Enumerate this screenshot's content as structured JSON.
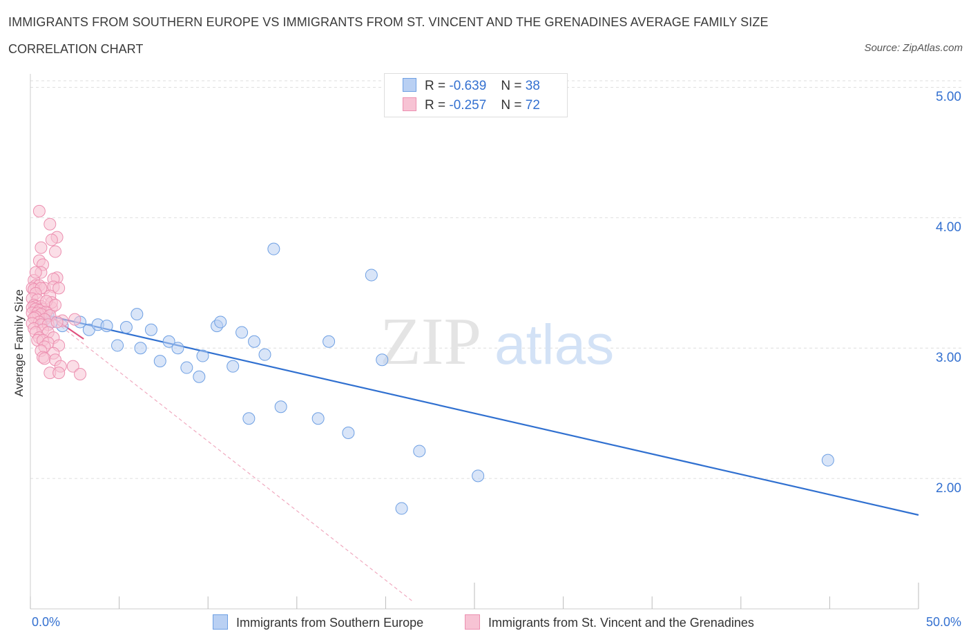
{
  "title": "IMMIGRANTS FROM SOUTHERN EUROPE VS IMMIGRANTS FROM ST. VINCENT AND THE GRENADINES AVERAGE FAMILY SIZE",
  "subtitle": "CORRELATION CHART",
  "source": "Source: ZipAtlas.com",
  "watermark": {
    "zip": "ZIP",
    "atlas": "atlas"
  },
  "legend_top": [
    {
      "r_label": "R =",
      "r_value": "-0.639",
      "n_label": "N =",
      "n_value": "38"
    },
    {
      "r_label": "R =",
      "r_value": "-0.257",
      "n_label": "N =",
      "n_value": "72"
    }
  ],
  "chart_data": {
    "type": "scatter",
    "title": "IMMIGRANTS FROM SOUTHERN EUROPE VS IMMIGRANTS FROM ST. VINCENT AND THE GRENADINES AVERAGE FAMILY SIZE",
    "xlabel": "",
    "ylabel": "Average Family Size",
    "xlim": [
      0,
      50
    ],
    "ylim": [
      1.0,
      5.0
    ],
    "x_tick_labels": [
      "0.0%",
      "50.0%"
    ],
    "y_ticks": [
      2.0,
      3.0,
      4.0,
      5.0
    ],
    "y_tick_labels": [
      "2.00",
      "3.00",
      "4.00",
      "5.00"
    ],
    "grid": true,
    "legend_placement": "bottom",
    "series": [
      {
        "name": "Immigrants from Southern Europe",
        "color": "#6d9fe3",
        "fill": "#b9d0f3",
        "trend": {
          "x": [
            0.3,
            50
          ],
          "y": [
            3.27,
            1.72
          ],
          "color": "#3070d0"
        },
        "points": [
          [
            0.7,
            3.22
          ],
          [
            1.2,
            3.2
          ],
          [
            1.8,
            3.17
          ],
          [
            2.8,
            3.2
          ],
          [
            3.3,
            3.14
          ],
          [
            3.8,
            3.18
          ],
          [
            4.3,
            3.17
          ],
          [
            4.9,
            3.02
          ],
          [
            5.4,
            3.16
          ],
          [
            6.0,
            3.26
          ],
          [
            6.2,
            3.0
          ],
          [
            6.8,
            3.14
          ],
          [
            7.3,
            2.9
          ],
          [
            7.8,
            3.05
          ],
          [
            8.3,
            3.0
          ],
          [
            8.8,
            2.85
          ],
          [
            9.5,
            2.78
          ],
          [
            9.7,
            2.94
          ],
          [
            10.5,
            3.17
          ],
          [
            10.7,
            3.2
          ],
          [
            11.4,
            2.86
          ],
          [
            11.9,
            3.12
          ],
          [
            12.3,
            2.46
          ],
          [
            12.6,
            3.05
          ],
          [
            13.2,
            2.95
          ],
          [
            13.7,
            3.76
          ],
          [
            14.1,
            2.55
          ],
          [
            16.2,
            2.46
          ],
          [
            16.8,
            3.05
          ],
          [
            17.9,
            2.35
          ],
          [
            19.2,
            3.56
          ],
          [
            19.8,
            2.91
          ],
          [
            20.9,
            1.77
          ],
          [
            21.9,
            2.21
          ],
          [
            25.2,
            2.02
          ],
          [
            44.9,
            2.14
          ],
          [
            0.4,
            3.3
          ],
          [
            1.0,
            3.25
          ]
        ]
      },
      {
        "name": "Immigrants from St. Vincent and the Grenadines",
        "color": "#ec8fb0",
        "fill": "#f7c3d4",
        "trend": {
          "x": [
            0.1,
            3.0
          ],
          "y": [
            3.34,
            3.07
          ],
          "color": "#e0507d"
        },
        "trend_extended": {
          "x": [
            0.1,
            21.5
          ],
          "y": [
            3.34,
            1.06
          ]
        },
        "points": [
          [
            0.5,
            4.05
          ],
          [
            1.1,
            3.95
          ],
          [
            1.5,
            3.85
          ],
          [
            1.2,
            3.83
          ],
          [
            0.6,
            3.77
          ],
          [
            1.4,
            3.74
          ],
          [
            0.5,
            3.67
          ],
          [
            0.7,
            3.64
          ],
          [
            0.6,
            3.58
          ],
          [
            0.2,
            3.52
          ],
          [
            1.5,
            3.54
          ],
          [
            1.3,
            3.53
          ],
          [
            0.3,
            3.48
          ],
          [
            0.5,
            3.48
          ],
          [
            0.8,
            3.46
          ],
          [
            1.3,
            3.47
          ],
          [
            1.6,
            3.46
          ],
          [
            0.1,
            3.46
          ],
          [
            0.2,
            3.45
          ],
          [
            0.6,
            3.46
          ],
          [
            0.3,
            3.42
          ],
          [
            1.1,
            3.4
          ],
          [
            0.1,
            3.38
          ],
          [
            0.4,
            3.37
          ],
          [
            0.2,
            3.33
          ],
          [
            0.3,
            3.32
          ],
          [
            0.6,
            3.32
          ],
          [
            0.1,
            3.31
          ],
          [
            0.3,
            3.3
          ],
          [
            0.7,
            3.3
          ],
          [
            1.2,
            3.31
          ],
          [
            0.5,
            3.29
          ],
          [
            0.9,
            3.28
          ],
          [
            0.1,
            3.27
          ],
          [
            0.4,
            3.27
          ],
          [
            0.6,
            3.26
          ],
          [
            0.3,
            3.24
          ],
          [
            0.2,
            3.23
          ],
          [
            1.1,
            3.25
          ],
          [
            0.8,
            3.22
          ],
          [
            1.8,
            3.21
          ],
          [
            2.5,
            3.22
          ],
          [
            0.5,
            3.2
          ],
          [
            0.1,
            3.19
          ],
          [
            0.6,
            3.18
          ],
          [
            1.0,
            3.18
          ],
          [
            1.5,
            3.2
          ],
          [
            0.2,
            3.15
          ],
          [
            0.7,
            3.14
          ],
          [
            0.3,
            3.12
          ],
          [
            1.0,
            3.12
          ],
          [
            0.5,
            3.08
          ],
          [
            0.4,
            3.06
          ],
          [
            1.3,
            3.08
          ],
          [
            0.7,
            3.06
          ],
          [
            1.0,
            3.04
          ],
          [
            1.6,
            3.02
          ],
          [
            0.8,
            3.01
          ],
          [
            0.6,
            2.98
          ],
          [
            1.3,
            2.96
          ],
          [
            0.7,
            2.93
          ],
          [
            0.8,
            2.92
          ],
          [
            1.4,
            2.91
          ],
          [
            1.7,
            2.86
          ],
          [
            2.4,
            2.86
          ],
          [
            1.1,
            2.81
          ],
          [
            1.6,
            2.81
          ],
          [
            2.8,
            2.8
          ],
          [
            1.2,
            3.35
          ],
          [
            0.9,
            3.36
          ],
          [
            1.4,
            3.33
          ],
          [
            0.3,
            3.58
          ]
        ]
      }
    ]
  },
  "colors": {
    "blue": "#3370d0",
    "pink": "#e0507d",
    "grid": "#dedede"
  }
}
